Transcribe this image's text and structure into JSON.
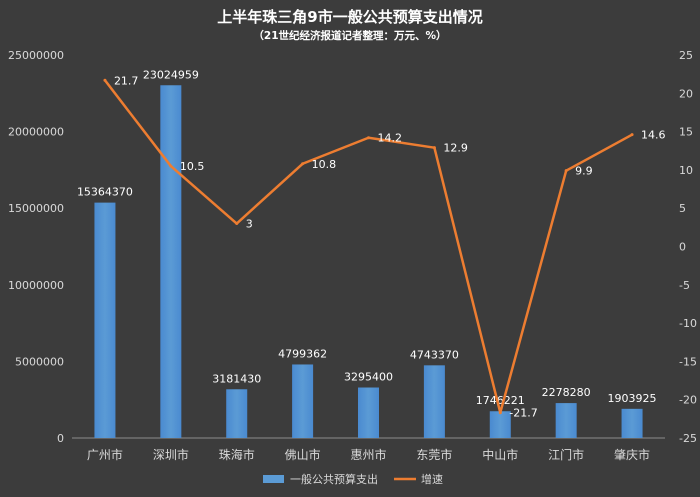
{
  "chart_data": {
    "type": "bar",
    "title": "上半年珠三角9市一般公共预算支出情况",
    "subtitle": "（21世纪经济报道记者整理：万元、%）",
    "categories": [
      "广州市",
      "深圳市",
      "珠海市",
      "佛山市",
      "惠州市",
      "东莞市",
      "中山市",
      "江门市",
      "肇庆市"
    ],
    "series": [
      {
        "name": "一般公共预算支出",
        "type": "bar",
        "axis": "left",
        "color": "#5b9bd5",
        "values": [
          15364370,
          23024959,
          3181430,
          4799362,
          3295400,
          4743370,
          1746221,
          2278280,
          1903925
        ],
        "labels": [
          "15364370",
          "23024959",
          "3181430",
          "4799362",
          "3295400",
          "4743370",
          "1746221",
          "2278280",
          "1903925"
        ]
      },
      {
        "name": "增速",
        "type": "line",
        "axis": "right",
        "color": "#ed7d31",
        "values": [
          21.7,
          10.5,
          3,
          10.8,
          14.2,
          12.9,
          -21.7,
          9.9,
          14.6
        ],
        "labels": [
          "21.7",
          "10.5",
          "3",
          "10.8",
          "14.2",
          "12.9",
          "-21.7",
          "9.9",
          "14.6"
        ]
      }
    ],
    "y_left": {
      "min": 0,
      "max": 25000000,
      "ticks": [
        0,
        5000000,
        10000000,
        15000000,
        20000000,
        25000000
      ],
      "tick_labels": [
        "0",
        "5000000",
        "10000000",
        "15000000",
        "20000000",
        "25000000"
      ]
    },
    "y_right": {
      "min": -25,
      "max": 25,
      "ticks": [
        -25,
        -20,
        -15,
        -10,
        -5,
        0,
        5,
        10,
        15,
        20,
        25
      ],
      "tick_labels": [
        "-25",
        "-20",
        "-15",
        "-10",
        "-5",
        "0",
        "5",
        "10",
        "15",
        "20",
        "25"
      ]
    },
    "grid": false,
    "legend": "bottom",
    "colors": {
      "background": "#3c3c3c",
      "text": "#ffffff",
      "axis_text": "#d9d9d9",
      "axis_line": "#8c8c8c"
    }
  }
}
